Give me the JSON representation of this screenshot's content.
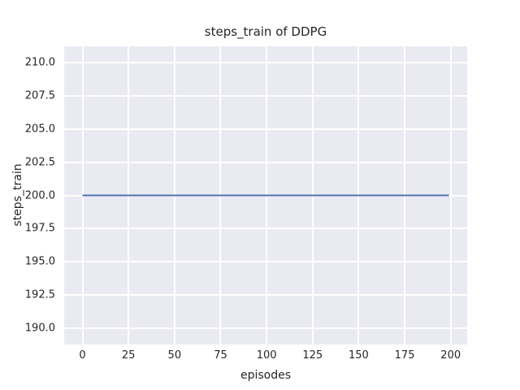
{
  "figure": {
    "background": "#ffffff"
  },
  "chart_data": {
    "type": "line",
    "title": "steps_train of DDPG",
    "xlabel": "episodes",
    "ylabel": "steps_train",
    "style": "seaborn-darkgrid",
    "grid": true,
    "legend": false,
    "axes_background": "#eaeaf2",
    "grid_color": "#ffffff",
    "text_color": "#262626",
    "xlim": [
      -9.95,
      208.95
    ],
    "ylim": [
      188.75,
      211.25
    ],
    "x_ticks": {
      "values": [
        0,
        25,
        50,
        75,
        100,
        125,
        150,
        175,
        200
      ],
      "labels": [
        "0",
        "25",
        "50",
        "75",
        "100",
        "125",
        "150",
        "175",
        "200"
      ]
    },
    "y_ticks": {
      "values": [
        190.0,
        192.5,
        195.0,
        197.5,
        200.0,
        202.5,
        205.0,
        207.5,
        210.0
      ],
      "labels": [
        "190.0",
        "192.5",
        "195.0",
        "197.5",
        "200.0",
        "202.5",
        "205.0",
        "207.5",
        "210.0"
      ]
    },
    "series": [
      {
        "name": "steps_train",
        "color": "#4c72b0",
        "linewidth": 2,
        "x": [
          0,
          199
        ],
        "y": [
          200,
          200
        ]
      }
    ]
  }
}
